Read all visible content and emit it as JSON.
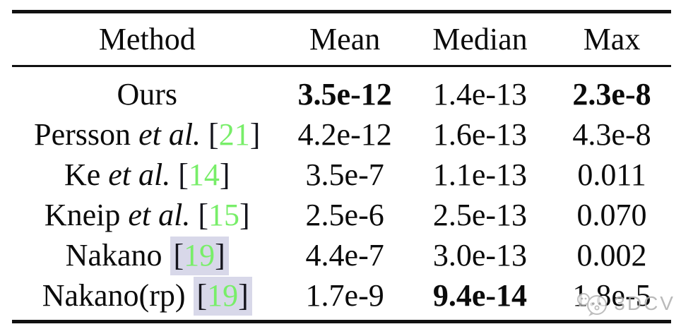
{
  "table": {
    "columns": [
      {
        "key": "method",
        "label": "Method"
      },
      {
        "key": "mean",
        "label": "Mean"
      },
      {
        "key": "median",
        "label": "Median"
      },
      {
        "key": "max",
        "label": "Max"
      }
    ],
    "rows": [
      {
        "method": {
          "name": "Ours",
          "etal": "",
          "cite": "",
          "highlight": false
        },
        "mean": {
          "value": "3.5e-12",
          "bold": true
        },
        "median": {
          "value": "1.4e-13",
          "bold": false
        },
        "max": {
          "value": "2.3e-8",
          "bold": true
        }
      },
      {
        "method": {
          "name": "Persson",
          "etal": "et al.",
          "cite": "21",
          "highlight": false
        },
        "mean": {
          "value": "4.2e-12",
          "bold": false
        },
        "median": {
          "value": "1.6e-13",
          "bold": false
        },
        "max": {
          "value": "4.3e-8",
          "bold": false
        }
      },
      {
        "method": {
          "name": "Ke",
          "etal": "et al.",
          "cite": "14",
          "highlight": false
        },
        "mean": {
          "value": "3.5e-7",
          "bold": false
        },
        "median": {
          "value": "1.1e-13",
          "bold": false
        },
        "max": {
          "value": "0.011",
          "bold": false
        }
      },
      {
        "method": {
          "name": "Kneip",
          "etal": "et al.",
          "cite": "15",
          "highlight": false
        },
        "mean": {
          "value": "2.5e-6",
          "bold": false
        },
        "median": {
          "value": "2.5e-13",
          "bold": false
        },
        "max": {
          "value": "0.070",
          "bold": false
        }
      },
      {
        "method": {
          "name": "Nakano",
          "etal": "",
          "cite": "19",
          "highlight": true
        },
        "mean": {
          "value": "4.4e-7",
          "bold": false
        },
        "median": {
          "value": "3.0e-13",
          "bold": false
        },
        "max": {
          "value": "0.002",
          "bold": false
        }
      },
      {
        "method": {
          "name": "Nakano(rp)",
          "etal": "",
          "cite": "19",
          "highlight": true
        },
        "mean": {
          "value": "1.7e-9",
          "bold": false
        },
        "median": {
          "value": "9.4e-14",
          "bold": true
        },
        "max": {
          "value": "1.8e-5",
          "bold": false
        }
      }
    ]
  },
  "watermark": {
    "label": "3DCV",
    "icon": "chat-face-icon"
  },
  "colors": {
    "citation": "#78ee69",
    "citation_bracket": "#16161e",
    "link_highlight": "#d8d8e9",
    "rule": "#111111",
    "watermark": "#aeaeae"
  }
}
